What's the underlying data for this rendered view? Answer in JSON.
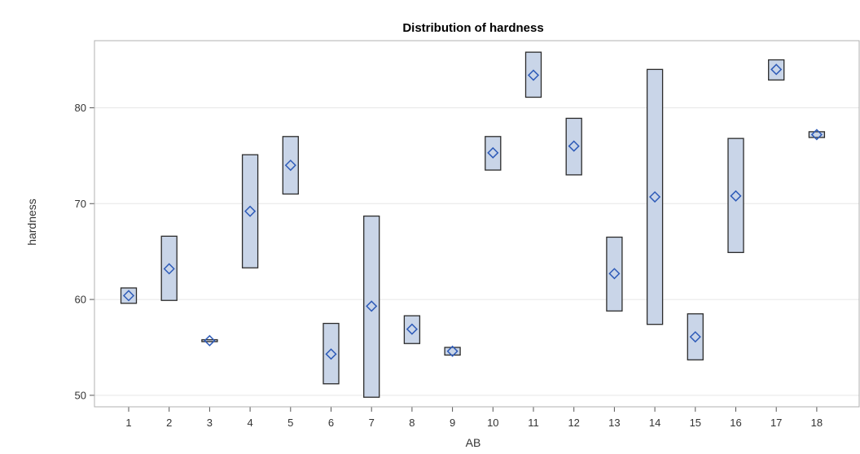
{
  "chart_data": {
    "type": "box",
    "title": "Distribution of hardness",
    "xlabel": "AB",
    "ylabel": "hardness",
    "categories": [
      "1",
      "2",
      "3",
      "4",
      "5",
      "6",
      "7",
      "8",
      "9",
      "10",
      "11",
      "12",
      "13",
      "14",
      "15",
      "16",
      "17",
      "18"
    ],
    "boxes": [
      {
        "category": "1",
        "min": 59.6,
        "max": 61.2,
        "mean": 60.4
      },
      {
        "category": "2",
        "min": 59.9,
        "max": 66.6,
        "mean": 63.2
      },
      {
        "category": "3",
        "min": 55.6,
        "max": 55.8,
        "mean": 55.7
      },
      {
        "category": "4",
        "min": 63.3,
        "max": 75.1,
        "mean": 69.2
      },
      {
        "category": "5",
        "min": 71.0,
        "max": 77.0,
        "mean": 74.0
      },
      {
        "category": "6",
        "min": 51.2,
        "max": 57.5,
        "mean": 54.3
      },
      {
        "category": "7",
        "min": 49.8,
        "max": 68.7,
        "mean": 59.3
      },
      {
        "category": "8",
        "min": 55.4,
        "max": 58.3,
        "mean": 56.9
      },
      {
        "category": "9",
        "min": 54.2,
        "max": 55.0,
        "mean": 54.6
      },
      {
        "category": "10",
        "min": 73.5,
        "max": 77.0,
        "mean": 75.3
      },
      {
        "category": "11",
        "min": 81.1,
        "max": 85.8,
        "mean": 83.4
      },
      {
        "category": "12",
        "min": 73.0,
        "max": 78.9,
        "mean": 76.0
      },
      {
        "category": "13",
        "min": 58.8,
        "max": 66.5,
        "mean": 62.7
      },
      {
        "category": "14",
        "min": 57.4,
        "max": 84.0,
        "mean": 70.7
      },
      {
        "category": "15",
        "min": 53.7,
        "max": 58.5,
        "mean": 56.1
      },
      {
        "category": "16",
        "min": 64.9,
        "max": 76.8,
        "mean": 70.8
      },
      {
        "category": "17",
        "min": 82.9,
        "max": 85.0,
        "mean": 84.0
      },
      {
        "category": "18",
        "min": 76.9,
        "max": 77.5,
        "mean": 77.2
      }
    ],
    "yticks": [
      50,
      60,
      70,
      80
    ],
    "ylim": [
      48.8,
      87.0
    ],
    "grid": true,
    "colors": {
      "box_fill": "#c9d5e8",
      "box_stroke": "#2b2b2b",
      "mean_marker": "#2e5bb8",
      "grid": "#e6e6e6",
      "frame": "#b0b0b0"
    }
  }
}
